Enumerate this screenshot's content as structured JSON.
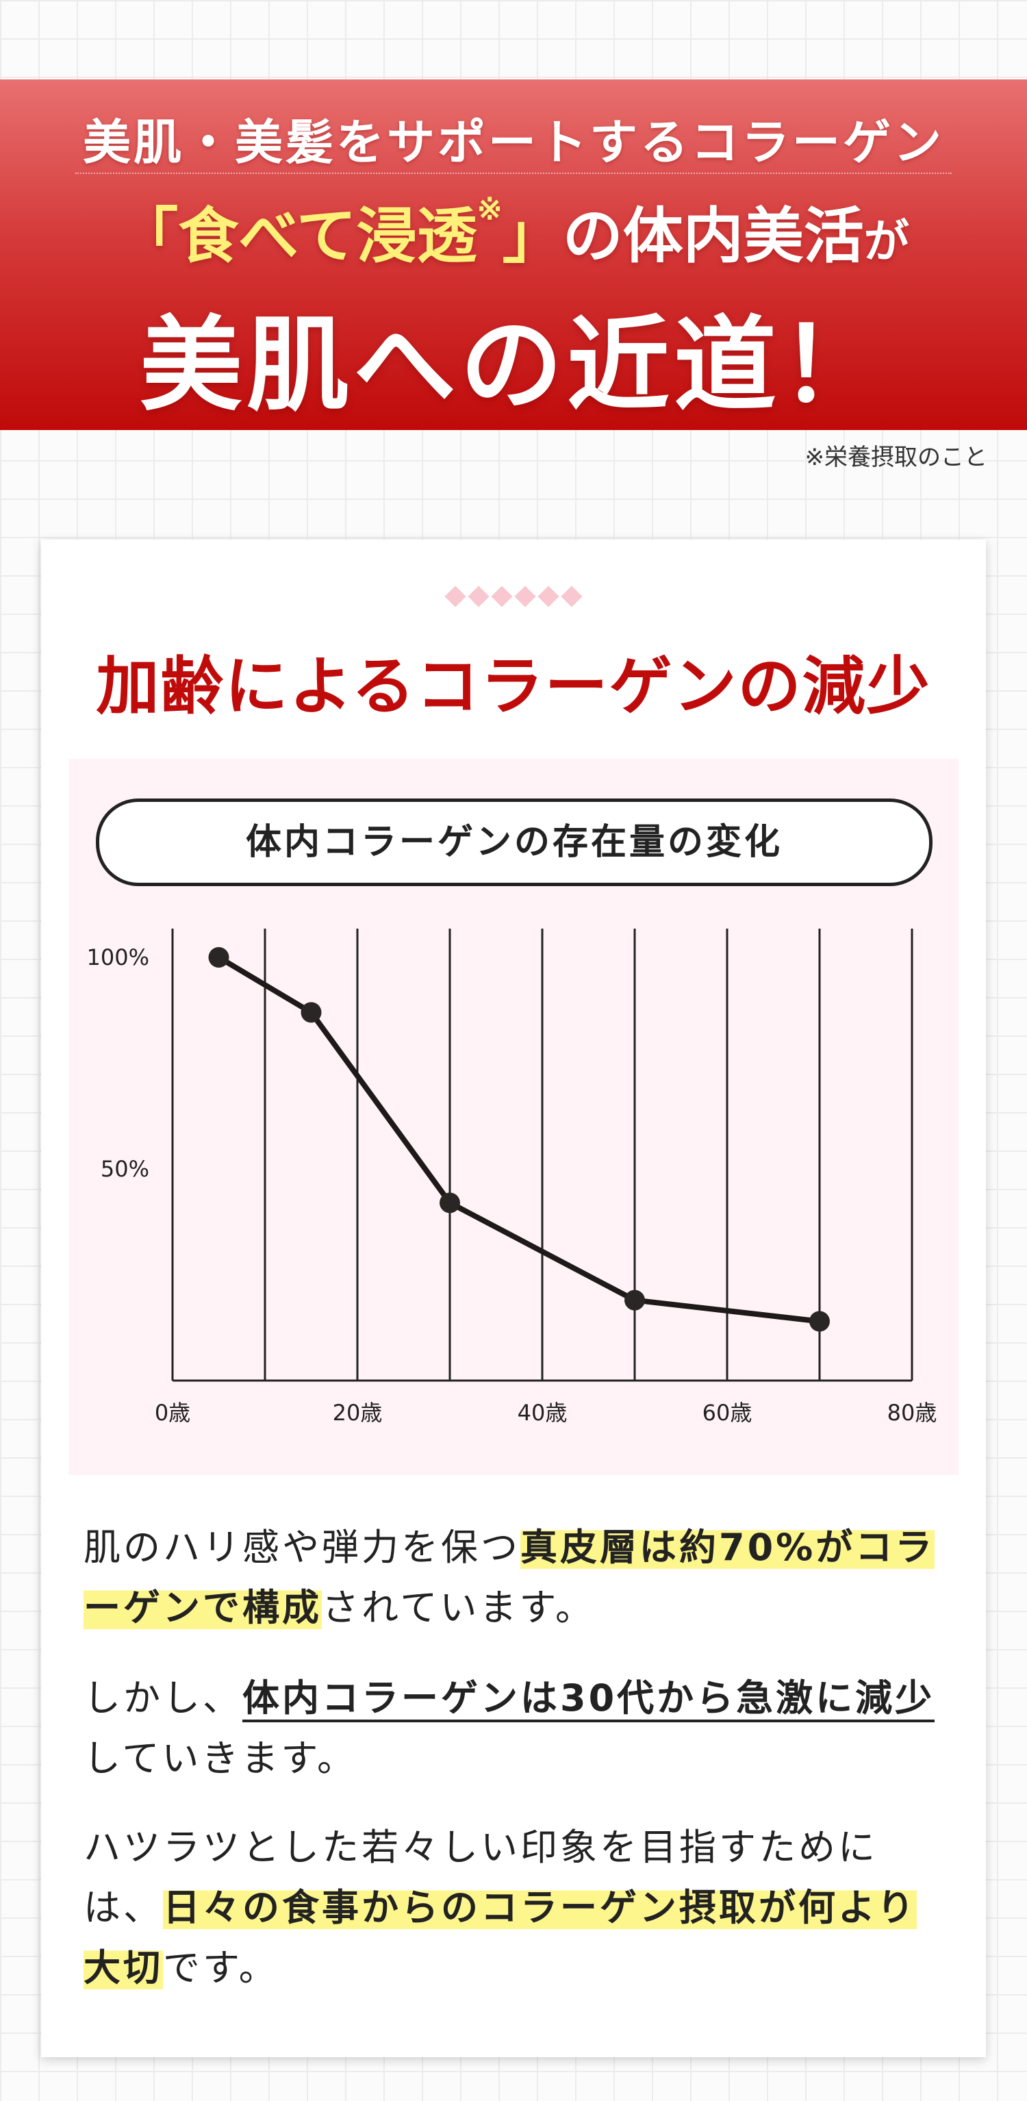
{
  "hero": {
    "line1": "美肌・美髪をサポートするコラーゲン",
    "line2_bracket_open": "「",
    "line2_highlight": "食べて浸透",
    "line2_mark": "※",
    "line2_bracket_close": "」",
    "line2_rest": "の体内美活",
    "line2_particle": "が",
    "line3": "美肌への近道！"
  },
  "note": "※栄養摂取のこと",
  "card": {
    "title": "加齢によるコラーゲンの減少",
    "chart_heading": "体内コラーゲンの存在量の変化"
  },
  "chart_data": {
    "type": "line",
    "title": "体内コラーゲンの存在量の変化",
    "x": [
      5,
      15,
      30,
      50,
      70
    ],
    "values": [
      100,
      87,
      42,
      19,
      14
    ],
    "xlim": [
      0,
      80
    ],
    "ylim": [
      0,
      110
    ],
    "x_ticks": [
      0,
      20,
      40,
      60,
      80
    ],
    "x_tick_labels": [
      "0歳",
      "20歳",
      "40歳",
      "60歳",
      "80歳"
    ],
    "y_ticks": [
      50,
      100
    ],
    "y_tick_labels": [
      "50%",
      "100%"
    ],
    "grid": "vertical",
    "colors": {
      "line": "#1e1a1a",
      "grid": "#222222",
      "background": "#fff3f7"
    }
  },
  "paragraphs": {
    "p1_a": "肌のハリ感や弾力を保つ",
    "p1_b": "真皮層は約70%がコラーゲンで構成",
    "p1_c": "されています。",
    "p2_a": "しかし、",
    "p2_b": "体内コラーゲンは30代から急激に減少",
    "p2_c": "していきます。",
    "p3_a": "ハツラツとした若々しい印象を目指すためには、",
    "p3_b": "日々の食事からのコラーゲン摂取が何より大切",
    "p3_c": "です。"
  }
}
